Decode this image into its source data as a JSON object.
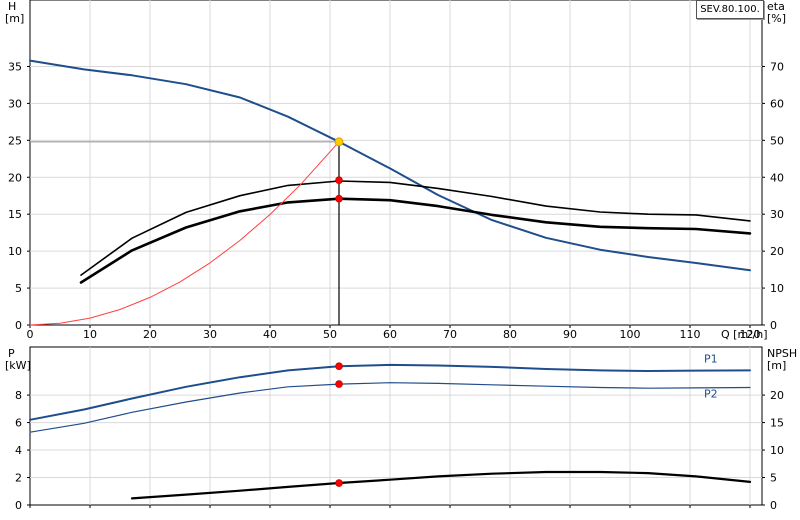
{
  "model_label": "SEV.80.100.",
  "chart_data": [
    {
      "type": "line",
      "x_label": "Q [m³/h]",
      "xlim": [
        0,
        122
      ],
      "x_ticks": [
        0,
        10,
        20,
        30,
        40,
        50,
        60,
        70,
        80,
        90,
        100,
        110,
        120
      ],
      "left_axis": {
        "label_top": "H",
        "label_unit": "[m]",
        "ylim": [
          0,
          44
        ],
        "ticks": [
          0,
          5,
          10,
          15,
          20,
          25,
          30,
          35
        ]
      },
      "right_axis": {
        "label_top": "eta",
        "label_unit": "[%]",
        "ylim": [
          0,
          88
        ],
        "ticks": [
          0,
          10,
          20,
          30,
          40,
          50,
          60,
          70
        ]
      },
      "grid": true,
      "duty_point": {
        "Q": 51.5,
        "H": 24.8
      },
      "series": [
        {
          "axis": "left",
          "color": "#1f4e8c",
          "x": [
            0,
            9,
            17,
            26,
            35,
            43,
            51.5,
            60,
            68,
            77,
            86,
            95,
            103,
            111,
            120
          ],
          "y": [
            35.8,
            34.6,
            33.8,
            32.6,
            30.8,
            28.2,
            24.8,
            21.2,
            17.6,
            14.2,
            11.8,
            10.2,
            9.2,
            8.4,
            7.4
          ]
        },
        {
          "axis": "right",
          "color": "#000000",
          "x": [
            8.5,
            17,
            26,
            35,
            43,
            51.5,
            60,
            68,
            77,
            86,
            95,
            103,
            111,
            120
          ],
          "y": [
            13.5,
            23.5,
            30.5,
            35,
            37.8,
            39,
            38.6,
            37,
            34.8,
            32.2,
            30.6,
            30,
            29.8,
            28.2
          ]
        },
        {
          "axis": "right",
          "color": "#000000",
          "x": [
            8.5,
            17,
            26,
            35,
            43,
            51.5,
            60,
            68,
            77,
            86,
            95,
            103,
            111,
            120
          ],
          "y": [
            11.5,
            20.2,
            26.4,
            30.8,
            33.2,
            34.2,
            33.8,
            32.2,
            29.8,
            27.8,
            26.6,
            26.2,
            26,
            24.8
          ]
        },
        {
          "axis": "left",
          "color": "#ff4040",
          "x": [
            0,
            5,
            10,
            15,
            20,
            25,
            30,
            35,
            40,
            45,
            51.5
          ],
          "y": [
            0,
            0.23,
            0.93,
            2.1,
            3.74,
            5.84,
            8.41,
            11.45,
            14.96,
            18.93,
            24.8
          ]
        }
      ],
      "markers": [
        {
          "axis": "left",
          "x": 51.5,
          "y": 19.6,
          "color": "#ff0000"
        },
        {
          "axis": "left",
          "x": 51.5,
          "y": 17.1,
          "color": "#ff0000"
        },
        {
          "axis": "left",
          "x": 51.5,
          "y": 24.8,
          "color": "#ffcc00"
        }
      ]
    },
    {
      "type": "line",
      "xlim": [
        0,
        122
      ],
      "x_ticks": [
        0,
        10,
        20,
        30,
        40,
        50,
        60,
        70,
        80,
        90,
        100,
        110,
        120
      ],
      "left_axis": {
        "label_top": "P",
        "label_unit": "[kW]",
        "ylim": [
          0,
          11.5
        ],
        "ticks": [
          0,
          2,
          4,
          6,
          8
        ]
      },
      "right_axis": {
        "label_top": "NPSH",
        "label_unit": "[m]",
        "ylim": [
          0,
          28.75
        ],
        "ticks": [
          0,
          5,
          10,
          15,
          20
        ]
      },
      "grid": true,
      "series": [
        {
          "name": "P1",
          "axis": "left",
          "color": "#1f4e8c",
          "x": [
            0,
            9,
            17,
            26,
            35,
            43,
            51.5,
            60,
            68,
            77,
            86,
            95,
            103,
            111,
            120
          ],
          "y": [
            6.2,
            6.95,
            7.75,
            8.6,
            9.3,
            9.8,
            10.1,
            10.2,
            10.15,
            10.05,
            9.9,
            9.8,
            9.75,
            9.78,
            9.8
          ]
        },
        {
          "name": "P2",
          "axis": "left",
          "color": "#1f4e8c",
          "x": [
            0,
            9,
            17,
            26,
            35,
            43,
            51.5,
            60,
            68,
            77,
            86,
            95,
            103,
            111,
            120
          ],
          "y": [
            5.3,
            5.95,
            6.75,
            7.5,
            8.15,
            8.6,
            8.8,
            8.9,
            8.85,
            8.75,
            8.65,
            8.55,
            8.5,
            8.52,
            8.55
          ]
        },
        {
          "axis": "right",
          "color": "#000000",
          "x": [
            17,
            26,
            35,
            43,
            51.5,
            60,
            68,
            77,
            86,
            95,
            103,
            111,
            120
          ],
          "y": [
            1.2,
            1.9,
            2.6,
            3.3,
            4.0,
            4.6,
            5.2,
            5.7,
            6.0,
            6.0,
            5.8,
            5.2,
            4.2
          ]
        }
      ],
      "markers": [
        {
          "axis": "left",
          "x": 51.5,
          "y": 10.1,
          "color": "#ff0000"
        },
        {
          "axis": "left",
          "x": 51.5,
          "y": 8.8,
          "color": "#ff0000"
        },
        {
          "axis": "right",
          "x": 51.5,
          "y": 4.0,
          "color": "#ff0000"
        }
      ]
    }
  ]
}
